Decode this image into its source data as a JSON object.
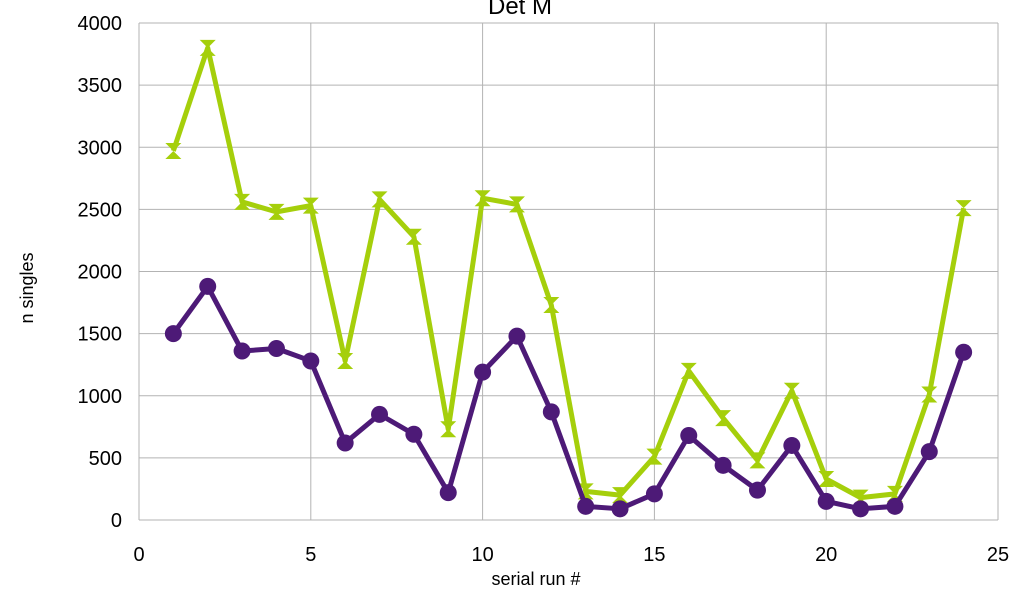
{
  "chart_data": {
    "type": "line",
    "title": "Det M",
    "xlabel": "serial run #",
    "ylabel": "n singles",
    "xlim": [
      0,
      25
    ],
    "ylim": [
      0,
      4000
    ],
    "xticks": [
      0,
      5,
      10,
      15,
      20,
      25
    ],
    "yticks": [
      0,
      500,
      1000,
      1500,
      2000,
      2500,
      3000,
      3500,
      4000
    ],
    "grid": true,
    "legend": "none",
    "series": [
      {
        "color": "#a5cf0b",
        "marker": "hourglass-triangle",
        "x": [
          1,
          2,
          3,
          4,
          5,
          6,
          7,
          8,
          9,
          10,
          11,
          12,
          13,
          14,
          15,
          16,
          17,
          18,
          19,
          20,
          21,
          22,
          23,
          24
        ],
        "y": [
          2970,
          3800,
          2560,
          2480,
          2530,
          1280,
          2580,
          2280,
          730,
          2590,
          2540,
          1730,
          230,
          200,
          510,
          1200,
          820,
          480,
          1040,
          330,
          180,
          210,
          1010,
          2510
        ]
      },
      {
        "color": "#4d1a77",
        "marker": "circle",
        "x": [
          1,
          2,
          3,
          4,
          5,
          6,
          7,
          8,
          9,
          10,
          11,
          12,
          13,
          14,
          15,
          16,
          17,
          18,
          19,
          20,
          21,
          22,
          23,
          24
        ],
        "y": [
          1500,
          1880,
          1360,
          1380,
          1280,
          620,
          850,
          690,
          220,
          1190,
          1480,
          870,
          110,
          90,
          210,
          680,
          440,
          240,
          600,
          150,
          90,
          110,
          550,
          1350
        ]
      }
    ]
  }
}
